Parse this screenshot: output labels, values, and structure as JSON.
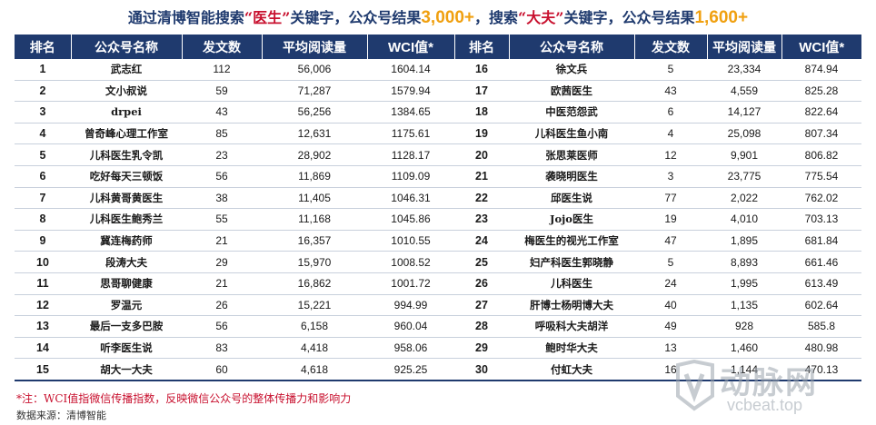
{
  "title": {
    "part1": "通过清博智能搜索",
    "q1": "“医生”",
    "part2": "关键字，公众号结果",
    "num1": "3,000+",
    "part3": "，搜索",
    "q2": "“大夫”",
    "part4": "关键字，公众号结果",
    "num2": "1,600+"
  },
  "table": {
    "headers": [
      "排名",
      "公众号名称",
      "发文数",
      "平均阅读量",
      "WCI值*",
      "排名",
      "公众号名称",
      "发文数",
      "平均阅读量",
      "WCI值*"
    ],
    "rows": [
      [
        "1",
        "武志红",
        "112",
        "56,006",
        "1604.14",
        "16",
        "徐文兵",
        "5",
        "23,334",
        "874.94"
      ],
      [
        "2",
        "文小叔说",
        "59",
        "71,287",
        "1579.94",
        "17",
        "欧茜医生",
        "43",
        "4,559",
        "825.28"
      ],
      [
        "3",
        "drpei",
        "43",
        "56,256",
        "1384.65",
        "18",
        "中医范怨武",
        "6",
        "14,127",
        "822.64"
      ],
      [
        "4",
        "曾奇峰心理工作室",
        "85",
        "12,631",
        "1175.61",
        "19",
        "儿科医生鱼小南",
        "4",
        "25,098",
        "807.34"
      ],
      [
        "5",
        "儿科医生乳令凯",
        "23",
        "28,902",
        "1128.17",
        "20",
        "张思莱医师",
        "12",
        "9,901",
        "806.82"
      ],
      [
        "6",
        "吃好每天三顿饭",
        "56",
        "11,869",
        "1109.09",
        "21",
        "袭晓明医生",
        "3",
        "23,775",
        "775.54"
      ],
      [
        "7",
        "儿科黄哥黄医生",
        "38",
        "11,405",
        "1046.31",
        "22",
        "邱医生说",
        "77",
        "2,022",
        "762.02"
      ],
      [
        "8",
        "儿科医生鲍秀兰",
        "55",
        "11,168",
        "1045.86",
        "23",
        "Jojo医生",
        "19",
        "4,010",
        "703.13"
      ],
      [
        "9",
        "冀连梅药师",
        "21",
        "16,357",
        "1010.55",
        "24",
        "梅医生的视光工作室",
        "47",
        "1,895",
        "681.84"
      ],
      [
        "10",
        "段涛大夫",
        "29",
        "15,970",
        "1008.52",
        "25",
        "妇产科医生郭晓静",
        "5",
        "8,893",
        "661.46"
      ],
      [
        "11",
        "思哥聊健康",
        "21",
        "16,862",
        "1001.72",
        "26",
        "儿科医生",
        "24",
        "1,995",
        "613.49"
      ],
      [
        "12",
        "罗温元",
        "26",
        "15,221",
        "994.99",
        "27",
        "肝博士杨明博大夫",
        "40",
        "1,135",
        "602.64"
      ],
      [
        "13",
        "最后一支多巴胺",
        "56",
        "6,158",
        "960.04",
        "28",
        "呼吸科大夫胡洋",
        "49",
        "928",
        "585.8"
      ],
      [
        "14",
        "听李医生说",
        "83",
        "4,418",
        "958.06",
        "29",
        "鲍时华大夫",
        "13",
        "1,460",
        "480.98"
      ],
      [
        "15",
        "胡大一大夫",
        "60",
        "4,618",
        "925.25",
        "30",
        "付虹大夫",
        "16",
        "1,144",
        "470.13"
      ]
    ]
  },
  "note": "*注：WCI值指微信传播指数，反映微信公众号的整体传播力和影响力",
  "source": "数据来源：清博智能",
  "watermark": {
    "cn": "动脉网",
    "en": "vcbeat.top"
  },
  "colors": {
    "header_bg": "#1f3a6e",
    "highlight_num": "#f0a010",
    "note_red": "#c8102e"
  }
}
